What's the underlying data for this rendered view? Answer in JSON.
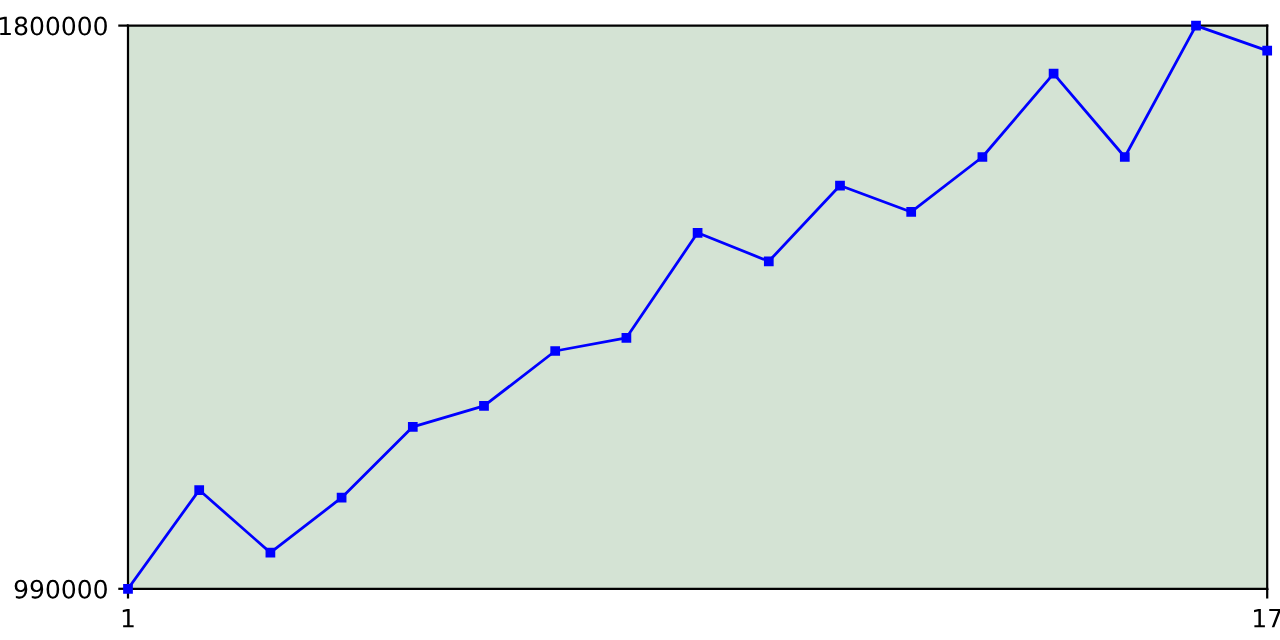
{
  "chart_data": {
    "type": "line",
    "x": [
      1,
      2,
      3,
      4,
      5,
      6,
      7,
      8,
      9,
      10,
      11,
      12,
      13,
      14,
      15,
      16,
      17
    ],
    "series": [
      {
        "color": "#0000ff",
        "values": [
          990000,
          1132000,
          1042000,
          1121000,
          1223000,
          1253000,
          1332000,
          1351000,
          1502000,
          1461000,
          1570000,
          1532000,
          1611000,
          1731000,
          1611000,
          1800000,
          1764000
        ]
      }
    ],
    "xlim": [
      1,
      17
    ],
    "xticks": [
      1,
      17
    ],
    "ylim": [
      990000,
      1800000
    ],
    "yticks": [
      990000,
      1800000
    ],
    "marker": "square",
    "line_style": "solid",
    "grid": false,
    "legend": false
  }
}
